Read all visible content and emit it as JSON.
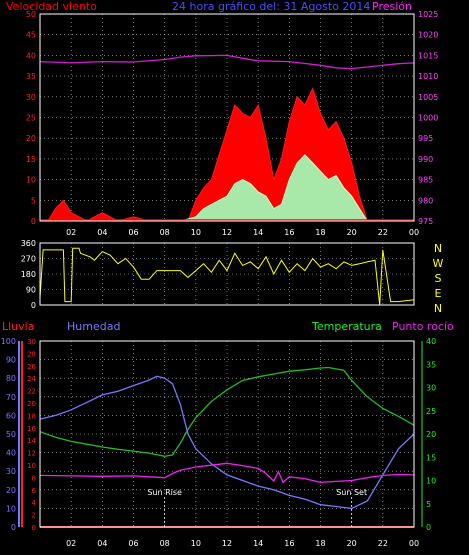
{
  "header": {
    "wind_label": "Velocidad viento",
    "title": "24 hora gráfico del: 31 Agosto 2014",
    "pressure_label": "Presión"
  },
  "colors": {
    "wind": "#ff1a1a",
    "gust_bg": "#ff0000",
    "avg": "#c8ffc8",
    "pressure": "#d11fd1",
    "direction": "#ffff00",
    "humidity": "#7878ff",
    "temperature": "#22bb22",
    "dewpoint": "#ee22ee",
    "rain": "#ff2020",
    "frame": "#ffffff",
    "grid": "#c0c0c0"
  },
  "chart_data": [
    {
      "type": "line",
      "name": "wind-pressure",
      "title": "24 hora gráfico del: 31 Agosto 2014",
      "ylabel_left": "Velocidad viento",
      "ylabel_right": "Presión",
      "ylim_left": [
        0,
        50
      ],
      "ylim_right": [
        975,
        1025
      ],
      "yticks_left": [
        "0",
        "5",
        "10",
        "15",
        "20",
        "25",
        "30",
        "35",
        "40",
        "45",
        "50"
      ],
      "yticks_right": [
        "975",
        "980",
        "985",
        "990",
        "995",
        "1000",
        "1005",
        "1010",
        "1015",
        "1020",
        "1025"
      ],
      "xticks": [
        "02",
        "04",
        "06",
        "08",
        "10",
        "12",
        "14",
        "16",
        "18",
        "20",
        "22",
        "00"
      ],
      "series": [
        {
          "name": "pressure",
          "x": [
            0,
            2,
            4,
            6,
            8,
            9,
            10,
            12,
            13,
            14,
            16,
            18,
            19,
            20,
            21,
            22,
            23,
            24
          ],
          "values": [
            1013.5,
            1013.2,
            1013.5,
            1013.4,
            1014.0,
            1014.6,
            1014.9,
            1015.0,
            1014.3,
            1013.7,
            1013.5,
            1012.6,
            1012.0,
            1011.8,
            1012.2,
            1012.6,
            1013.0,
            1013.2
          ]
        },
        {
          "name": "gust",
          "x": [
            0,
            0.5,
            1,
            1.5,
            2,
            3,
            4,
            5,
            6,
            7,
            8,
            9,
            9.5,
            10,
            10.5,
            11,
            11.5,
            12,
            12.5,
            13,
            13.5,
            14,
            14.5,
            15,
            15.5,
            16,
            16.5,
            17,
            17.5,
            18,
            18.5,
            19,
            19.5,
            20,
            20.5,
            21,
            22,
            23,
            24
          ],
          "values": [
            0,
            0,
            3,
            5,
            2,
            0,
            2,
            0,
            1,
            0,
            0,
            0,
            0,
            5,
            8,
            10,
            16,
            22,
            28,
            26,
            25,
            28,
            20,
            10,
            15,
            24,
            30,
            28,
            32,
            26,
            22,
            24,
            20,
            14,
            6,
            0,
            0,
            0,
            0
          ]
        },
        {
          "name": "average",
          "x": [
            0,
            9,
            10,
            10.5,
            11,
            11.5,
            12,
            12.5,
            13,
            13.5,
            14,
            14.5,
            15,
            15.5,
            16,
            16.5,
            17,
            17.5,
            18,
            18.5,
            19,
            19.5,
            20,
            20.5,
            21,
            22,
            24
          ],
          "values": [
            0,
            0,
            1,
            3,
            4,
            5,
            6,
            9,
            10,
            9,
            7,
            6,
            3,
            4,
            10,
            14,
            16,
            14,
            12,
            10,
            11,
            8,
            6,
            3,
            0,
            0,
            0
          ]
        }
      ]
    },
    {
      "type": "line",
      "name": "wind-direction",
      "ylim": [
        0,
        360
      ],
      "yticks": [
        "0",
        "90",
        "180",
        "270",
        "360"
      ],
      "compass": [
        "N",
        "W",
        "S",
        "E",
        "N"
      ],
      "series": [
        {
          "name": "direction",
          "x": [
            0,
            0.2,
            1.5,
            1.6,
            2.0,
            2.1,
            2.5,
            2.6,
            3.2,
            3.5,
            4.0,
            4.5,
            5.0,
            5.5,
            6.0,
            6.5,
            7.0,
            7.5,
            8.0,
            8.5,
            9.0,
            9.5,
            10.0,
            10.5,
            11.0,
            11.5,
            12.0,
            12.5,
            13.0,
            13.5,
            14.0,
            14.5,
            15.0,
            15.5,
            16.0,
            16.5,
            17.0,
            17.5,
            18.0,
            18.5,
            19.0,
            19.5,
            20.0,
            20.5,
            21.0,
            21.5,
            21.8,
            22.0,
            22.5,
            23.0,
            24.0
          ],
          "values": [
            40,
            320,
            320,
            20,
            20,
            330,
            330,
            300,
            280,
            260,
            310,
            290,
            240,
            270,
            220,
            150,
            150,
            200,
            200,
            200,
            200,
            160,
            200,
            240,
            190,
            260,
            200,
            300,
            230,
            250,
            210,
            280,
            180,
            260,
            190,
            240,
            200,
            270,
            220,
            240,
            210,
            250,
            230,
            240,
            250,
            260,
            0,
            320,
            20,
            20,
            30
          ]
        }
      ]
    },
    {
      "type": "line",
      "name": "humidity-temperature",
      "ylabel_left_rain": "Lluvia",
      "ylabel_left_humidity": "Humedad",
      "ylabel_right_temp": "Temperatura",
      "ylabel_right_dew": "Punto rocío",
      "ylim_rain": [
        0,
        30
      ],
      "ylim_humidity": [
        0,
        100
      ],
      "ylim_temp": [
        0,
        40
      ],
      "yticks_rain": [
        "0",
        "2",
        "4",
        "6",
        "8",
        "10",
        "12",
        "14",
        "16",
        "18",
        "20",
        "22",
        "24",
        "26",
        "28",
        "30"
      ],
      "yticks_humidity": [
        "0",
        "10",
        "20",
        "30",
        "40",
        "50",
        "60",
        "70",
        "80",
        "90",
        "100"
      ],
      "yticks_temp": [
        "0",
        "5",
        "10",
        "15",
        "20",
        "25",
        "30",
        "35",
        "40"
      ],
      "xticks": [
        "02",
        "04",
        "06",
        "08",
        "10",
        "12",
        "14",
        "16",
        "18",
        "20",
        "22",
        "00"
      ],
      "annotations": [
        {
          "label": "Sun Rise",
          "x": 8
        },
        {
          "label": "Sun Set",
          "x": 20
        }
      ],
      "series": [
        {
          "name": "humidity",
          "x": [
            0,
            1,
            2,
            3,
            4,
            5,
            6,
            7,
            7.5,
            8,
            8.5,
            9,
            9.5,
            10,
            11,
            12,
            13,
            14,
            15,
            16,
            17,
            18,
            19,
            20,
            21,
            22,
            23,
            24
          ],
          "values": [
            58,
            60,
            63,
            67,
            71,
            73,
            76,
            79,
            81,
            80,
            77,
            66,
            50,
            42,
            34,
            28,
            25,
            22,
            20,
            17,
            15,
            12,
            11,
            10,
            14,
            28,
            42,
            50
          ]
        },
        {
          "name": "temperature",
          "x": [
            0,
            1,
            2,
            3,
            4,
            5,
            6,
            7,
            8,
            8.5,
            9,
            9.5,
            10,
            11,
            12,
            13,
            14,
            15,
            16,
            17,
            18,
            18.5,
            19,
            19.5,
            20,
            21,
            22,
            23,
            24
          ],
          "values": [
            20.5,
            19.3,
            18.4,
            17.8,
            17.2,
            16.7,
            16.3,
            15.9,
            15.2,
            15.5,
            18,
            21,
            23.5,
            27,
            29.5,
            31.5,
            32.3,
            32.9,
            33.5,
            33.8,
            34.2,
            34.3,
            34,
            33.7,
            31.5,
            28,
            25.5,
            23.8,
            21.9
          ]
        },
        {
          "name": "dewpoint",
          "x": [
            0,
            2,
            4,
            6,
            7,
            8,
            8.5,
            9,
            10,
            11,
            12,
            13,
            14,
            14.5,
            15,
            15.3,
            15.6,
            16,
            17,
            18,
            19,
            20,
            21,
            22,
            23,
            24
          ],
          "values": [
            11.1,
            11.0,
            10.9,
            11.0,
            10.8,
            10.6,
            11.5,
            12.2,
            12.9,
            13.3,
            13.7,
            13.2,
            12.6,
            11.5,
            9.9,
            11.9,
            9.6,
            10.8,
            10.4,
            9.6,
            9.8,
            10.0,
            10.6,
            11.1,
            11.3,
            11.2
          ]
        },
        {
          "name": "rain",
          "x": [
            0,
            24
          ],
          "values": [
            0,
            0
          ]
        }
      ]
    }
  ]
}
